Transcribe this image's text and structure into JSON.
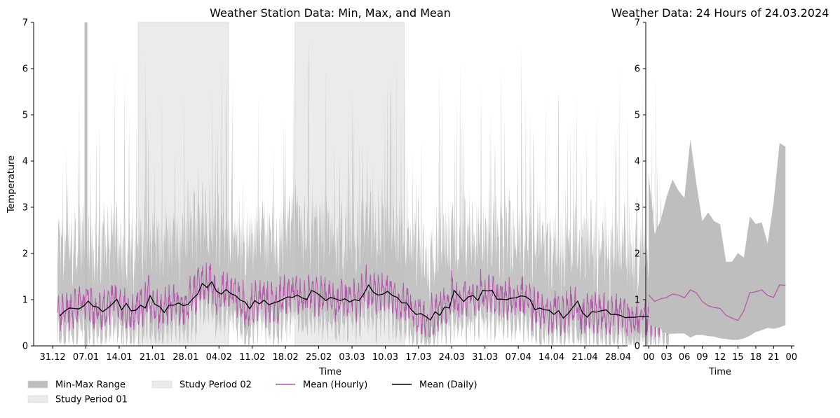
{
  "chart_data": [
    {
      "type": "area",
      "title": "Weather Station Data: Min, Max, and Mean",
      "xlabel": "Time",
      "ylabel": "Temperature",
      "xlim": [
        "2023-12-27",
        "2024-04-30"
      ],
      "ylim": [
        0,
        7
      ],
      "x_ticks": [
        {
          "date": "2023-12-31",
          "label": "31.12"
        },
        {
          "date": "2024-01-07",
          "label": "07.01"
        },
        {
          "date": "2024-01-14",
          "label": "14.01"
        },
        {
          "date": "2024-01-21",
          "label": "21.01"
        },
        {
          "date": "2024-01-28",
          "label": "28.01"
        },
        {
          "date": "2024-02-04",
          "label": "04.02"
        },
        {
          "date": "2024-02-11",
          "label": "11.02"
        },
        {
          "date": "2024-02-18",
          "label": "18.02"
        },
        {
          "date": "2024-02-25",
          "label": "25.02"
        },
        {
          "date": "2024-03-03",
          "label": "03.03"
        },
        {
          "date": "2024-03-10",
          "label": "10.03"
        },
        {
          "date": "2024-03-17",
          "label": "17.03"
        },
        {
          "date": "2024-03-24",
          "label": "24.03"
        },
        {
          "date": "2024-03-31",
          "label": "31.03"
        },
        {
          "date": "2024-04-07",
          "label": "07.04"
        },
        {
          "date": "2024-04-14",
          "label": "14.04"
        },
        {
          "date": "2024-04-21",
          "label": "21.04"
        },
        {
          "date": "2024-04-28",
          "label": "28.04"
        }
      ],
      "y_ticks": [
        0,
        1,
        2,
        3,
        4,
        5,
        6,
        7
      ],
      "study_periods": [
        {
          "name": "Study Period 01",
          "start": "2024-01-18",
          "end": "2024-02-06",
          "color": "#ebebeb"
        },
        {
          "name": "Study Period 02",
          "start": "2024-02-20",
          "end": "2024-03-14",
          "color": "#ebebeb"
        }
      ],
      "outlier_spike": {
        "date": "2024-01-07",
        "max": 7
      },
      "series": [
        {
          "name": "Mean (Daily)",
          "color": "#000000",
          "start_date": "2024-01-01",
          "values": [
            0.65,
            0.75,
            0.82,
            0.81,
            0.8,
            0.86,
            0.97,
            0.86,
            0.84,
            0.74,
            0.81,
            0.9,
            1.01,
            0.78,
            0.92,
            0.76,
            0.77,
            0.88,
            0.82,
            1.09,
            0.9,
            0.85,
            0.72,
            0.88,
            0.88,
            0.93,
            0.87,
            0.9,
            1.02,
            1.12,
            1.35,
            1.26,
            1.39,
            1.18,
            1.12,
            1.22,
            1.13,
            1.09,
            0.99,
            0.95,
            0.8,
            0.98,
            0.91,
            0.99,
            0.89,
            0.93,
            0.96,
            1.01,
            1.06,
            1.05,
            1.1,
            1.04,
            1.0,
            1.2,
            1.15,
            1.07,
            0.98,
            1.05,
            1.02,
            0.98,
            1.02,
            0.95,
            1.0,
            0.98,
            1.13,
            1.32,
            1.16,
            1.1,
            1.12,
            1.18,
            1.09,
            1.05,
            0.93,
            0.93,
            0.78,
            0.68,
            0.7,
            0.64,
            0.56,
            0.74,
            0.66,
            0.84,
            0.82,
            1.2,
            1.08,
            0.96,
            1.06,
            1.09,
            0.98,
            1.2,
            1.19,
            1.2,
            1.01,
            1.01,
            1.0,
            1.03,
            1.04,
            1.08,
            1.07,
            1.0,
            0.78,
            0.82,
            0.78,
            0.77,
            0.68,
            0.76,
            0.6,
            0.7,
            0.84,
            0.97,
            0.72,
            0.62,
            0.74,
            0.73,
            0.76,
            0.78,
            0.68,
            0.68,
            0.66,
            0.61,
            0.62,
            0.62,
            0.63,
            0.64,
            0.64,
            0.61,
            0.51,
            0.66,
            0.67
          ]
        },
        {
          "name": "Mean (Hourly)",
          "color": "#b45aab",
          "note_range": "hourly values oscillating around the daily mean"
        },
        {
          "name": "Min-Max Range",
          "color": "#bebebe"
        }
      ]
    },
    {
      "type": "area",
      "title": "Weather Data: 24 Hours of 24.03.2024",
      "xlabel": "Time",
      "ylabel": "",
      "xlim": [
        -0.5,
        24.5
      ],
      "ylim": [
        0,
        7
      ],
      "x_ticks": [
        {
          "hour": 0,
          "label": "00"
        },
        {
          "hour": 3,
          "label": "03"
        },
        {
          "hour": 6,
          "label": "06"
        },
        {
          "hour": 9,
          "label": "09"
        },
        {
          "hour": 12,
          "label": "12"
        },
        {
          "hour": 15,
          "label": "15"
        },
        {
          "hour": 18,
          "label": "18"
        },
        {
          "hour": 21,
          "label": "21"
        },
        {
          "hour": 24,
          "label": "00"
        }
      ],
      "y_ticks": [
        0,
        1,
        2,
        3,
        4,
        5,
        6,
        7
      ],
      "hours": [
        0,
        1,
        2,
        3,
        4,
        5,
        6,
        7,
        8,
        9,
        10,
        11,
        12,
        13,
        14,
        15,
        16,
        17,
        18,
        19,
        20,
        21,
        22,
        23
      ],
      "series": [
        {
          "name": "Max",
          "color": "#bebebe",
          "values": [
            3.72,
            2.42,
            2.72,
            3.22,
            3.6,
            3.36,
            3.2,
            4.47,
            3.52,
            2.7,
            2.89,
            2.7,
            2.63,
            1.82,
            1.82,
            2.01,
            1.91,
            2.8,
            2.64,
            2.67,
            2.22,
            3.1,
            4.39,
            4.31
          ]
        },
        {
          "name": "Min",
          "color": "#bebebe",
          "values": [
            0.46,
            0.41,
            0.38,
            0.26,
            0.26,
            0.27,
            0.27,
            0.18,
            0.24,
            0.24,
            0.21,
            0.2,
            0.16,
            0.15,
            0.13,
            0.13,
            0.16,
            0.22,
            0.3,
            0.34,
            0.39,
            0.37,
            0.4,
            0.45
          ]
        },
        {
          "name": "Mean (Hourly)",
          "color": "#b45aab",
          "values": [
            1.1,
            0.96,
            1.02,
            1.05,
            1.12,
            1.1,
            1.04,
            1.21,
            1.15,
            0.96,
            0.87,
            0.83,
            0.81,
            0.66,
            0.6,
            0.55,
            0.76,
            1.15,
            1.17,
            1.21,
            1.09,
            1.05,
            1.32,
            1.31
          ]
        }
      ]
    }
  ],
  "legend": {
    "placement": "lower-left",
    "items": [
      {
        "label": "Min-Max Range",
        "kind": "patch",
        "color": "#bebebe"
      },
      {
        "label": "Study Period 01",
        "kind": "patch",
        "color": "#ebebeb"
      },
      {
        "label": "Study Period 02",
        "kind": "patch",
        "color": "#ebebeb"
      },
      {
        "label": "Mean (Hourly)",
        "kind": "line",
        "color": "#b45aab"
      },
      {
        "label": "Mean (Daily)",
        "kind": "line",
        "color": "#000000"
      }
    ]
  }
}
